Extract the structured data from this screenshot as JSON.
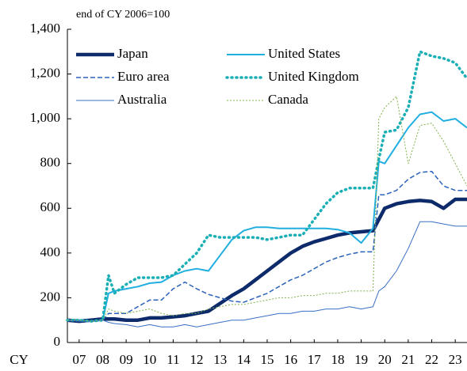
{
  "chart_data": {
    "type": "line",
    "subtitle": "end of CY 2006=100",
    "x_label": "CY",
    "x": [
      7,
      7.5,
      8,
      8.5,
      8.75,
      9,
      9.5,
      10,
      10.5,
      11,
      11.5,
      12,
      12.5,
      13,
      13.5,
      14,
      14.5,
      15,
      15.5,
      16,
      16.5,
      17,
      17.5,
      18,
      18.5,
      19,
      19.5,
      20,
      20.25,
      20.5,
      21,
      21.5,
      22,
      22.5,
      23,
      23.5,
      24
    ],
    "series": [
      {
        "name": "Japan",
        "color": "#0d2a6b",
        "width": 4.5,
        "dash": "none",
        "values": [
          100,
          95,
          100,
          105,
          105,
          105,
          100,
          100,
          110,
          110,
          115,
          120,
          130,
          140,
          175,
          210,
          240,
          280,
          320,
          360,
          400,
          430,
          450,
          465,
          480,
          490,
          495,
          500,
          550,
          600,
          620,
          630,
          635,
          630,
          600,
          640,
          640
        ]
      },
      {
        "name": "United States",
        "color": "#21aee0",
        "width": 2,
        "dash": "none",
        "values": [
          100,
          100,
          95,
          100,
          220,
          230,
          240,
          250,
          265,
          270,
          300,
          320,
          330,
          320,
          390,
          460,
          500,
          515,
          515,
          510,
          510,
          510,
          510,
          510,
          505,
          490,
          445,
          510,
          810,
          800,
          880,
          960,
          1020,
          1030,
          990,
          1000,
          960
        ]
      },
      {
        "name": "Euro area",
        "color": "#2a62b8",
        "width": 1.5,
        "dash": "6 3",
        "values": [
          100,
          100,
          95,
          100,
          130,
          130,
          130,
          160,
          190,
          190,
          240,
          270,
          240,
          215,
          200,
          185,
          180,
          200,
          220,
          250,
          280,
          300,
          330,
          360,
          380,
          395,
          405,
          405,
          660,
          660,
          680,
          730,
          760,
          765,
          700,
          680,
          680
        ]
      },
      {
        "name": "United Kingdom",
        "color": "#1aafb5",
        "width": 3.5,
        "dash": "1 5",
        "values": [
          100,
          100,
          95,
          100,
          300,
          220,
          260,
          290,
          290,
          290,
          300,
          350,
          400,
          480,
          470,
          470,
          470,
          470,
          460,
          470,
          480,
          480,
          550,
          620,
          670,
          690,
          690,
          690,
          820,
          940,
          950,
          1050,
          1300,
          1280,
          1270,
          1250,
          1180
        ]
      },
      {
        "name": "Australia",
        "color": "#3a6fc4",
        "width": 1,
        "dash": "none",
        "values": [
          100,
          95,
          95,
          100,
          90,
          85,
          80,
          70,
          80,
          70,
          70,
          80,
          70,
          80,
          90,
          100,
          100,
          110,
          120,
          130,
          130,
          140,
          140,
          150,
          150,
          160,
          150,
          160,
          230,
          250,
          320,
          420,
          540,
          540,
          530,
          520,
          520
        ]
      },
      {
        "name": "Canada",
        "color": "#7fb24a",
        "width": 1,
        "dash": "2 2",
        "values": [
          100,
          100,
          95,
          100,
          150,
          140,
          130,
          140,
          150,
          130,
          120,
          130,
          130,
          150,
          160,
          170,
          170,
          180,
          190,
          200,
          200,
          210,
          210,
          220,
          220,
          230,
          230,
          230,
          1000,
          1050,
          1100,
          800,
          970,
          980,
          900,
          800,
          700
        ]
      }
    ],
    "xlim": [
      7,
      24
    ],
    "xticks": [
      {
        "value": 7.5,
        "label": "07"
      },
      {
        "value": 8.5,
        "label": "08"
      },
      {
        "value": 9.5,
        "label": "09"
      },
      {
        "value": 10.5,
        "label": "10"
      },
      {
        "value": 11.5,
        "label": "11"
      },
      {
        "value": 12.5,
        "label": "12"
      },
      {
        "value": 13.5,
        "label": "13"
      },
      {
        "value": 14.5,
        "label": "14"
      },
      {
        "value": 15.5,
        "label": "15"
      },
      {
        "value": 16.5,
        "label": "16"
      },
      {
        "value": 17.5,
        "label": "17"
      },
      {
        "value": 18.5,
        "label": "18"
      },
      {
        "value": 19.5,
        "label": "19"
      },
      {
        "value": 20.5,
        "label": "20"
      },
      {
        "value": 21.5,
        "label": "21"
      },
      {
        "value": 22.5,
        "label": "22"
      },
      {
        "value": 23.5,
        "label": "23"
      }
    ],
    "ylim": [
      0,
      1400
    ],
    "yticks": [
      0,
      200,
      400,
      600,
      800,
      {
        "value": 1000,
        "label": "1,000"
      },
      {
        "value": 1200,
        "label": "1,200"
      },
      {
        "value": 1400,
        "label": "1,400"
      }
    ],
    "legend": "upper-left",
    "legend_columns": 2,
    "grid": false
  }
}
